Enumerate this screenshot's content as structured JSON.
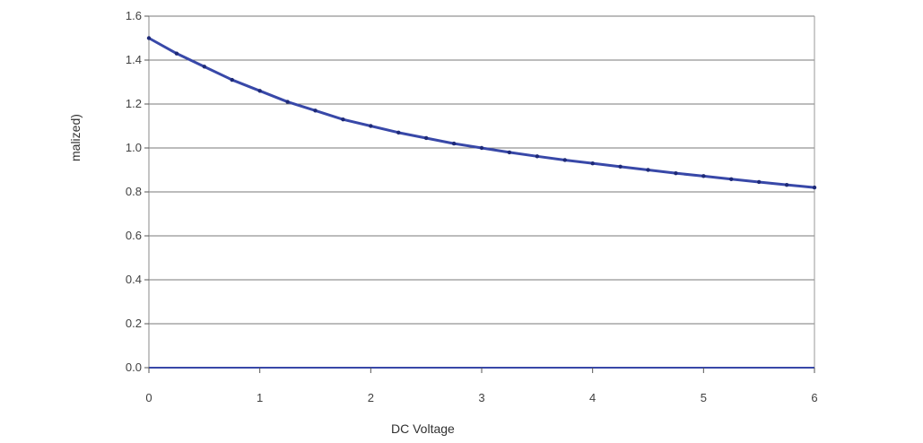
{
  "chart_data": {
    "type": "line",
    "title": "",
    "xlabel": "DC Voltage",
    "ylabel": "malized)",
    "x_ticks": [
      "0",
      "1",
      "2",
      "3",
      "4",
      "5",
      "6"
    ],
    "y_ticks": [
      "0.0",
      "0.2",
      "0.4",
      "0.6",
      "0.8",
      "1.0",
      "1.2",
      "1.4",
      "1.6"
    ],
    "xlim": [
      0,
      6
    ],
    "ylim": [
      0,
      1.6
    ],
    "grid": true,
    "series": [
      {
        "name": "",
        "color": "#3848a8",
        "x": [
          0,
          0.25,
          0.5,
          0.75,
          1.0,
          1.25,
          1.5,
          1.75,
          2.0,
          2.25,
          2.5,
          2.75,
          3.0,
          3.25,
          3.5,
          3.75,
          4.0,
          4.25,
          4.5,
          4.75,
          5.0,
          5.25,
          5.5,
          5.75,
          6.0
        ],
        "y": [
          1.5,
          1.43,
          1.37,
          1.31,
          1.26,
          1.21,
          1.17,
          1.13,
          1.1,
          1.07,
          1.045,
          1.02,
          1.0,
          0.98,
          0.962,
          0.945,
          0.93,
          0.915,
          0.9,
          0.885,
          0.872,
          0.858,
          0.845,
          0.832,
          0.82
        ]
      }
    ]
  }
}
